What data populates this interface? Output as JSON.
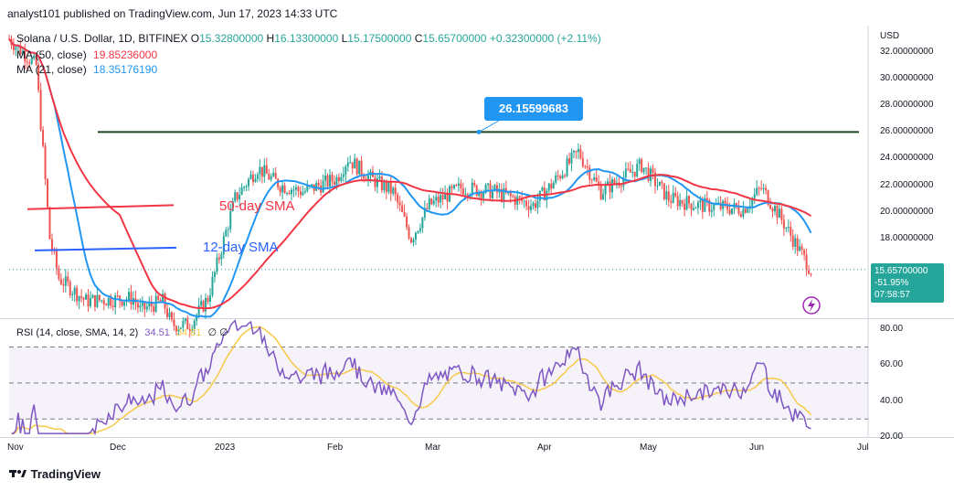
{
  "header": {
    "text": "analyst101 published on TradingView.com, Jun 17, 2023 14:33 UTC"
  },
  "legend": {
    "symbol": "Solana / U.S. Dollar, 1D, BITFINEX",
    "open_label": "O",
    "open": "15.32800000",
    "high_label": "H",
    "high": "16.13300000",
    "low_label": "L",
    "low": "15.17500000",
    "close_label": "C",
    "close": "15.65700000",
    "change": "+0.32300000 (+2.11%)",
    "ma50_label": "MA (50, close)",
    "ma50_value": "19.85236000",
    "ma21_label": "MA (21, close)",
    "ma21_value": "18.35176190"
  },
  "rsi_legend": {
    "label": "RSI (14, close, SMA, 14, 2)",
    "rsi": "34.51",
    "sma": "34.81",
    "extra": "∅  ∅"
  },
  "annotations": {
    "callout": "26.15599683",
    "sma50": "50-day SMA",
    "sma12": "12-day SMA"
  },
  "price_badge": {
    "price": "15.65700000",
    "change": "-51.95%",
    "countdown": "07:58:57"
  },
  "currency": "USD",
  "footer": {
    "brand": "TradingView"
  },
  "colors": {
    "up": "#26a69a",
    "down": "#ef5350",
    "ma50": "#f23645",
    "ma21": "#2196f3",
    "rsi": "#7e57c2",
    "rsi_sma": "#f7c948",
    "trendline": "#1e4620",
    "blue_line": "#2962ff"
  },
  "chart_data": [
    {
      "type": "candlestick",
      "title": "Solana / U.S. Dollar, 1D, BITFINEX",
      "ylim": [
        12,
        34
      ],
      "y_ticks": [
        "32.00000000",
        "30.00000000",
        "28.00000000",
        "26.00000000",
        "24.00000000",
        "22.00000000",
        "20.00000000",
        "18.00000000"
      ],
      "x_ticks": [
        "Nov",
        "Dec",
        "2023",
        "Feb",
        "Mar",
        "Apr",
        "May",
        "Jun",
        "Jul"
      ],
      "x": [
        "Nov",
        "Dec",
        "2023",
        "Feb",
        "Mar",
        "Apr",
        "May",
        "Jun"
      ],
      "close_approx": [
        33,
        13.5,
        11,
        12,
        22,
        23,
        20,
        20.5,
        23,
        21,
        21,
        22,
        20,
        15.66
      ],
      "resistance": 26.0,
      "series": [
        {
          "name": "MA (50, close)",
          "last": 19.85236
        },
        {
          "name": "MA (21, close)",
          "last": 18.3517619
        }
      ]
    },
    {
      "type": "line",
      "title": "RSI (14, close, SMA, 14, 2)",
      "ylim": [
        20,
        85
      ],
      "y_ticks": [
        "80.00",
        "60.00",
        "40.00",
        "20.00"
      ],
      "bands": [
        30,
        70
      ],
      "series": [
        {
          "name": "RSI",
          "last": 34.51
        },
        {
          "name": "SMA",
          "last": 34.81
        }
      ]
    }
  ]
}
